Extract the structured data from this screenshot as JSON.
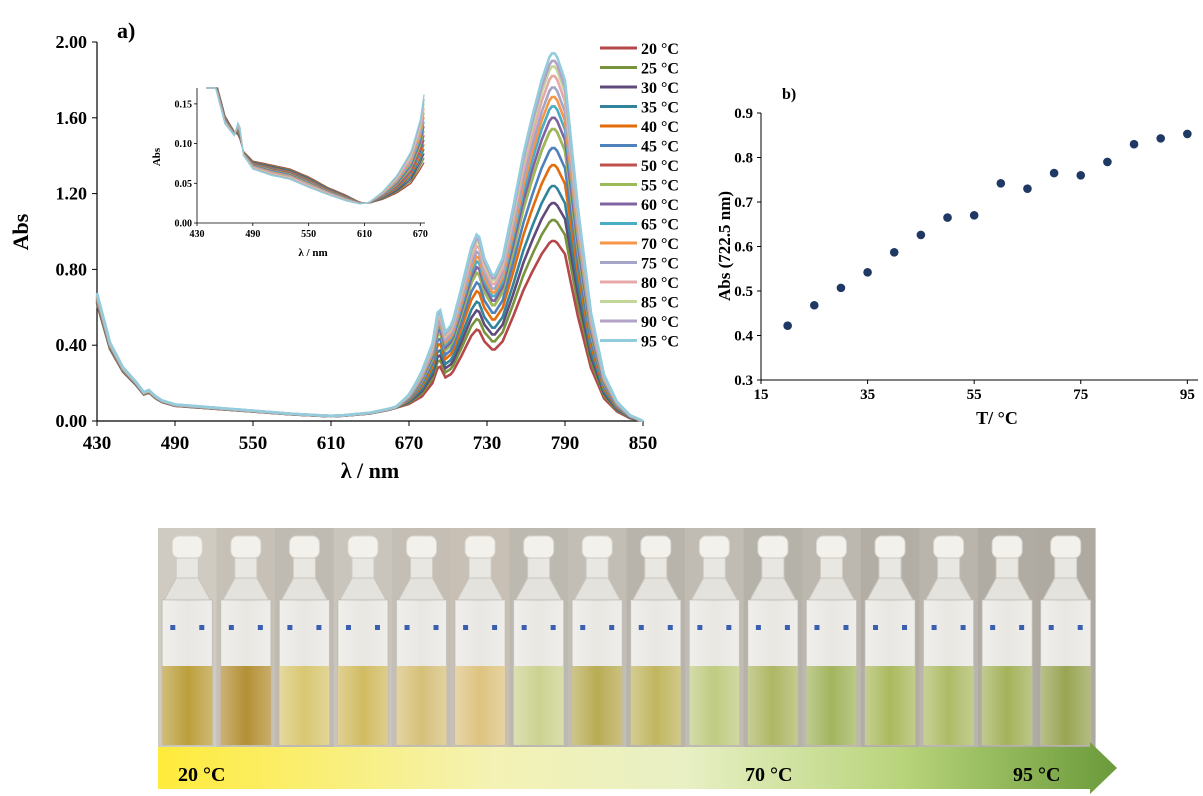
{
  "panels": {
    "a": "a)",
    "b": "b)"
  },
  "chart_data": [
    {
      "type": "line",
      "xlabel": "λ / nm",
      "ylabel": "Abs",
      "xlim": [
        430,
        850
      ],
      "ylim": [
        0.0,
        2.0
      ],
      "x_ticks": [
        "430",
        "490",
        "550",
        "610",
        "670",
        "730",
        "790",
        "850"
      ],
      "y_ticks": [
        "0.00",
        "0.40",
        "0.80",
        "1.20",
        "1.60",
        "2.00"
      ],
      "grid": false,
      "legend_position": "right",
      "series_shape": {
        "x": [
          430,
          440,
          450,
          460,
          466,
          470,
          475,
          480,
          490,
          500,
          520,
          540,
          560,
          580,
          600,
          610,
          620,
          640,
          655,
          670,
          680,
          688,
          693,
          698,
          703,
          710,
          718,
          723,
          728,
          735,
          742,
          750,
          758,
          765,
          772,
          779,
          783,
          790,
          800,
          810,
          820,
          830,
          840,
          850
        ],
        "y": [
          0.62,
          0.38,
          0.26,
          0.19,
          0.14,
          0.15,
          0.12,
          0.1,
          0.08,
          0.075,
          0.065,
          0.055,
          0.045,
          0.035,
          0.028,
          0.025,
          0.028,
          0.04,
          0.06,
          0.09,
          0.13,
          0.2,
          0.3,
          0.23,
          0.25,
          0.34,
          0.45,
          0.49,
          0.42,
          0.37,
          0.42,
          0.55,
          0.69,
          0.79,
          0.88,
          0.95,
          0.95,
          0.88,
          0.55,
          0.28,
          0.12,
          0.05,
          0.015,
          0.0
        ]
      },
      "series": [
        {
          "name": "20 °C",
          "peak": 0.95,
          "color": "#b5474a"
        },
        {
          "name": "25 °C",
          "peak": 1.06,
          "color": "#77933c"
        },
        {
          "name": "30 °C",
          "peak": 1.15,
          "color": "#604a7b"
        },
        {
          "name": "35 °C",
          "peak": 1.24,
          "color": "#31849b"
        },
        {
          "name": "40 °C",
          "peak": 1.35,
          "color": "#e46c0a"
        },
        {
          "name": "45 °C",
          "peak": 1.44,
          "color": "#4f81bd"
        },
        {
          "name": "50 °C",
          "peak": 1.54,
          "color": "#c0504d"
        },
        {
          "name": "55 °C",
          "peak": 1.54,
          "color": "#9bbb59"
        },
        {
          "name": "60 °C",
          "peak": 1.6,
          "color": "#8064a2"
        },
        {
          "name": "65 °C",
          "peak": 1.66,
          "color": "#4bacc6"
        },
        {
          "name": "70 °C",
          "peak": 1.71,
          "color": "#f79646"
        },
        {
          "name": "75 °C",
          "peak": 1.76,
          "color": "#a5a5c8"
        },
        {
          "name": "80 °C",
          "peak": 1.82,
          "color": "#e6a8a8"
        },
        {
          "name": "85 °C",
          "peak": 1.87,
          "color": "#c4d79b"
        },
        {
          "name": "90 °C",
          "peak": 1.9,
          "color": "#b3a2c7"
        },
        {
          "name": "95 °C",
          "peak": 1.94,
          "color": "#93cddd"
        }
      ],
      "inset": {
        "xlabel": "λ / nm",
        "ylabel": "Abs",
        "xlim": [
          430,
          675
        ],
        "ylim": [
          0.0,
          0.17
        ],
        "x_ticks": [
          "430",
          "490",
          "550",
          "610",
          "670"
        ],
        "y_ticks": [
          "0.00",
          "0.05",
          "0.10",
          "0.15"
        ],
        "low_x": [
          440,
          450,
          460,
          470,
          475,
          480,
          490,
          510,
          530,
          550,
          570,
          590,
          605,
          615,
          630,
          645,
          660,
          670,
          675
        ],
        "low_y": [
          0.24,
          0.18,
          0.135,
          0.115,
          0.11,
          0.09,
          0.078,
          0.073,
          0.068,
          0.058,
          0.045,
          0.035,
          0.026,
          0.025,
          0.03,
          0.038,
          0.05,
          0.068,
          0.078
        ],
        "high_x": [
          440,
          450,
          460,
          470,
          475,
          480,
          490,
          510,
          530,
          550,
          570,
          590,
          605,
          615,
          630,
          645,
          660,
          670,
          675
        ],
        "high_y": [
          0.22,
          0.17,
          0.125,
          0.11,
          0.13,
          0.085,
          0.068,
          0.06,
          0.055,
          0.045,
          0.036,
          0.028,
          0.024,
          0.026,
          0.04,
          0.06,
          0.09,
          0.13,
          0.17
        ]
      }
    },
    {
      "type": "scatter",
      "xlabel": "T/ °C",
      "ylabel": "Abs (722.5 nm)",
      "xlim": [
        15,
        97
      ],
      "ylim": [
        0.3,
        0.9
      ],
      "x_ticks": [
        "15",
        "35",
        "55",
        "75",
        "95"
      ],
      "y_ticks": [
        "0.3",
        "0.4",
        "0.5",
        "0.6",
        "0.7",
        "0.8",
        "0.9"
      ],
      "grid": false,
      "color": "#1f3864",
      "x": [
        20,
        25,
        30,
        35,
        40,
        45,
        50,
        55,
        60,
        65,
        70,
        75,
        80,
        85,
        90,
        95
      ],
      "y": [
        0.422,
        0.468,
        0.507,
        0.542,
        0.587,
        0.626,
        0.665,
        0.67,
        0.742,
        0.73,
        0.765,
        0.76,
        0.79,
        0.83,
        0.843,
        0.853
      ]
    }
  ],
  "vials": {
    "count": 16,
    "gradient_labels": [
      "20 °C",
      "70 °C",
      "95 °C"
    ],
    "liquid_colors": [
      "#b89a32",
      "#b08a2a",
      "#d6c46a",
      "#cfb85a",
      "#d4bd72",
      "#dcc07a",
      "#c9d08a",
      "#b5a74a",
      "#bdb257",
      "#bcc97a",
      "#a9b35c",
      "#9db155",
      "#a6b657",
      "#a9b85e",
      "#9fae52",
      "#93a04a"
    ],
    "backgrounds": [
      "#cfcac2",
      "#c6c0b6",
      "#bfbab2",
      "#c9c4bc",
      "#c4beb5",
      "#c8c0b4",
      "#bcb9b0",
      "#c2beb6",
      "#b8b4ac",
      "#c0bcb4",
      "#b5b2aa",
      "#bcb8b0",
      "#b2aea6",
      "#b9b5ad",
      "#b0aca4",
      "#aeaaa2"
    ]
  }
}
